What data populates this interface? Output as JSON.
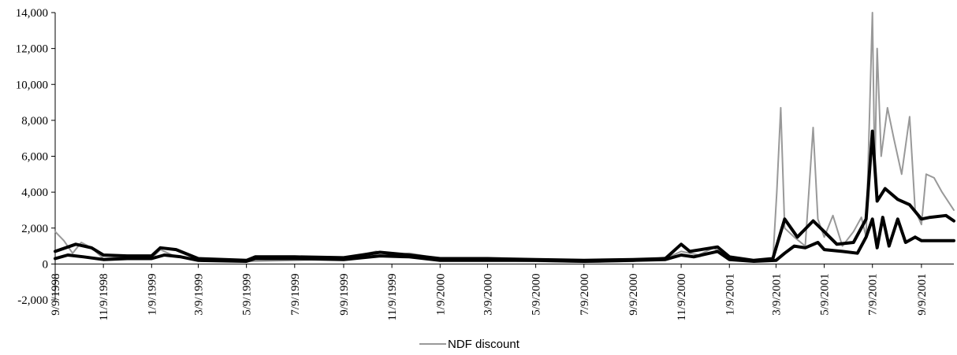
{
  "chart_data": {
    "type": "line",
    "ylim": [
      -2000,
      14000
    ],
    "y_ticks": [
      "14,000",
      "12,000",
      "10,000",
      "8,000",
      "6,000",
      "4,000",
      "2,000",
      "0",
      "-2,000"
    ],
    "y_tick_values": [
      14000,
      12000,
      10000,
      8000,
      6000,
      4000,
      2000,
      0,
      -2000
    ],
    "x_range": [
      "9/9/1998",
      "10/20/2001"
    ],
    "x_ticks": [
      "9/9/1998",
      "11/9/1998",
      "1/9/1999",
      "3/9/1999",
      "5/9/1999",
      "7/9/1999",
      "9/9/1999",
      "11/9/1999",
      "1/9/2000",
      "3/9/2000",
      "5/9/2000",
      "7/9/2000",
      "9/9/2000",
      "11/9/2000",
      "1/9/2001",
      "3/9/2001",
      "5/9/2001",
      "7/9/2001",
      "9/9/2001"
    ],
    "grid": false,
    "legend_position": "bottom-center",
    "series": [
      {
        "name": "NDF discount",
        "color": "#999999",
        "points": [
          [
            "9/9/1998",
            1800
          ],
          [
            "9/20/1998",
            1300
          ],
          [
            "10/1/1998",
            600
          ],
          [
            "10/12/1998",
            1200
          ],
          [
            "10/25/1998",
            900
          ],
          [
            "11/9/1998",
            300
          ],
          [
            "12/9/1998",
            400
          ],
          [
            "1/9/1999",
            300
          ],
          [
            "1/20/1999",
            800
          ],
          [
            "2/9/1999",
            400
          ],
          [
            "3/9/1999",
            250
          ],
          [
            "5/9/1999",
            150
          ],
          [
            "7/9/1999",
            200
          ],
          [
            "9/9/1999",
            300
          ],
          [
            "10/20/1999",
            700
          ],
          [
            "11/9/1999",
            500
          ],
          [
            "12/1/1999",
            600
          ],
          [
            "1/9/2000",
            300
          ],
          [
            "3/9/2000",
            200
          ],
          [
            "5/9/2000",
            150
          ],
          [
            "7/9/2000",
            100
          ],
          [
            "9/9/2000",
            150
          ],
          [
            "10/25/2000",
            400
          ],
          [
            "11/9/2000",
            700
          ],
          [
            "12/1/2000",
            500
          ],
          [
            "12/20/2000",
            900
          ],
          [
            "1/9/2001",
            300
          ],
          [
            "2/9/2001",
            150
          ],
          [
            "3/5/2001",
            200
          ],
          [
            "3/10/2001",
            4000
          ],
          [
            "3/15/2001",
            8700
          ],
          [
            "3/20/2001",
            2000
          ],
          [
            "4/1/2001",
            1500
          ],
          [
            "4/15/2001",
            1000
          ],
          [
            "4/25/2001",
            7600
          ],
          [
            "5/1/2001",
            2500
          ],
          [
            "5/9/2001",
            1500
          ],
          [
            "5/20/2001",
            2700
          ],
          [
            "6/1/2001",
            1000
          ],
          [
            "6/15/2001",
            1800
          ],
          [
            "6/25/2001",
            2600
          ],
          [
            "7/1/2001",
            1500
          ],
          [
            "7/9/2001",
            14000
          ],
          [
            "7/12/2001",
            5000
          ],
          [
            "7/15/2001",
            12000
          ],
          [
            "7/20/2001",
            6000
          ],
          [
            "7/28/2001",
            8700
          ],
          [
            "8/5/2001",
            7000
          ],
          [
            "8/15/2001",
            5000
          ],
          [
            "8/25/2001",
            8200
          ],
          [
            "9/1/2001",
            3000
          ],
          [
            "9/9/2001",
            2200
          ],
          [
            "9/15/2001",
            5000
          ],
          [
            "9/25/2001",
            4800
          ],
          [
            "10/5/2001",
            4000
          ],
          [
            "10/20/2001",
            3000
          ]
        ]
      },
      {
        "color": "#000000",
        "points": [
          [
            "9/9/1998",
            700
          ],
          [
            "10/5/1998",
            1100
          ],
          [
            "10/25/1998",
            900
          ],
          [
            "11/9/1998",
            500
          ],
          [
            "12/9/1998",
            450
          ],
          [
            "1/9/1999",
            450
          ],
          [
            "1/20/1999",
            900
          ],
          [
            "2/9/1999",
            800
          ],
          [
            "3/9/1999",
            300
          ],
          [
            "5/9/1999",
            200
          ],
          [
            "5/20/1999",
            400
          ],
          [
            "7/9/1999",
            400
          ],
          [
            "9/9/1999",
            350
          ],
          [
            "10/25/1999",
            650
          ],
          [
            "12/1/1999",
            500
          ],
          [
            "1/9/2000",
            300
          ],
          [
            "3/9/2000",
            300
          ],
          [
            "5/9/2000",
            250
          ],
          [
            "7/9/2000",
            200
          ],
          [
            "9/9/2000",
            250
          ],
          [
            "10/20/2000",
            300
          ],
          [
            "11/9/2000",
            1100
          ],
          [
            "11/20/2000",
            700
          ],
          [
            "12/25/2000",
            950
          ],
          [
            "1/9/2001",
            400
          ],
          [
            "2/9/2001",
            200
          ],
          [
            "3/5/2001",
            300
          ],
          [
            "3/20/2001",
            2500
          ],
          [
            "4/5/2001",
            1500
          ],
          [
            "4/25/2001",
            2400
          ],
          [
            "5/9/2001",
            1800
          ],
          [
            "5/25/2001",
            1100
          ],
          [
            "6/15/2001",
            1200
          ],
          [
            "7/1/2001",
            2500
          ],
          [
            "7/9/2001",
            7400
          ],
          [
            "7/15/2001",
            3500
          ],
          [
            "7/25/2001",
            4200
          ],
          [
            "8/10/2001",
            3600
          ],
          [
            "8/25/2001",
            3300
          ],
          [
            "9/9/2001",
            2500
          ],
          [
            "9/20/2001",
            2600
          ],
          [
            "10/10/2001",
            2700
          ],
          [
            "10/20/2001",
            2400
          ]
        ]
      },
      {
        "color": "#000000",
        "points": [
          [
            "9/9/1998",
            300
          ],
          [
            "9/25/1998",
            500
          ],
          [
            "10/15/1998",
            400
          ],
          [
            "11/9/1998",
            250
          ],
          [
            "12/9/1998",
            300
          ],
          [
            "1/9/1999",
            300
          ],
          [
            "1/25/1999",
            500
          ],
          [
            "2/15/1999",
            400
          ],
          [
            "3/9/1999",
            200
          ],
          [
            "5/9/1999",
            150
          ],
          [
            "5/20/1999",
            300
          ],
          [
            "7/9/1999",
            300
          ],
          [
            "9/9/1999",
            250
          ],
          [
            "10/25/1999",
            450
          ],
          [
            "12/1/1999",
            400
          ],
          [
            "1/9/2000",
            200
          ],
          [
            "3/9/2000",
            200
          ],
          [
            "5/9/2000",
            200
          ],
          [
            "7/9/2000",
            150
          ],
          [
            "9/9/2000",
            200
          ],
          [
            "10/20/2000",
            250
          ],
          [
            "11/9/2000",
            500
          ],
          [
            "11/25/2000",
            400
          ],
          [
            "12/25/2000",
            700
          ],
          [
            "1/9/2001",
            250
          ],
          [
            "2/9/2001",
            150
          ],
          [
            "3/9/2001",
            200
          ],
          [
            "3/20/2001",
            600
          ],
          [
            "4/1/2001",
            1000
          ],
          [
            "4/15/2001",
            900
          ],
          [
            "5/1/2001",
            1200
          ],
          [
            "5/9/2001",
            800
          ],
          [
            "6/1/2001",
            700
          ],
          [
            "6/20/2001",
            600
          ],
          [
            "7/1/2001",
            1500
          ],
          [
            "7/9/2001",
            2500
          ],
          [
            "7/15/2001",
            900
          ],
          [
            "7/22/2001",
            2600
          ],
          [
            "7/30/2001",
            1000
          ],
          [
            "8/10/2001",
            2500
          ],
          [
            "8/20/2001",
            1200
          ],
          [
            "9/1/2001",
            1500
          ],
          [
            "9/9/2001",
            1300
          ],
          [
            "10/1/2001",
            1300
          ],
          [
            "10/20/2001",
            1300
          ]
        ]
      }
    ]
  }
}
